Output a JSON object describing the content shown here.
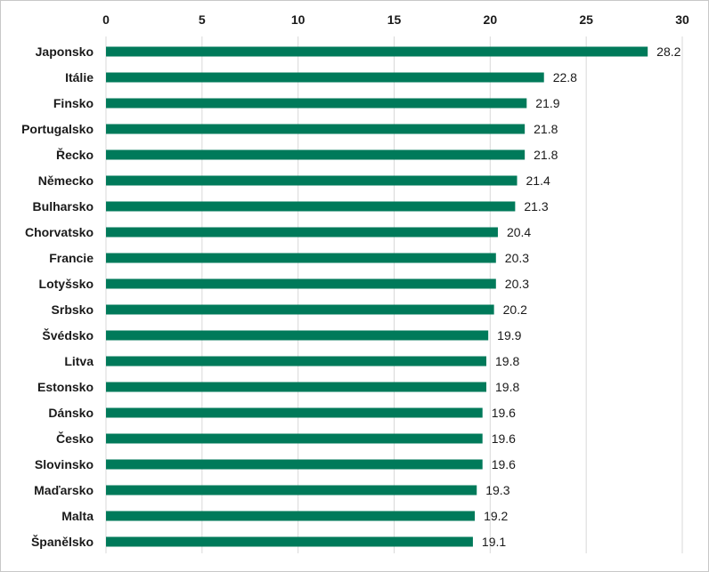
{
  "chart_data": {
    "type": "bar",
    "orientation": "horizontal",
    "categories": [
      "Japonsko",
      "Itálie",
      "Finsko",
      "Portugalsko",
      "Řecko",
      "Německo",
      "Bulharsko",
      "Chorvatsko",
      "Francie",
      "Lotyšsko",
      "Srbsko",
      "Švédsko",
      "Litva",
      "Estonsko",
      "Dánsko",
      "Česko",
      "Slovinsko",
      "Maďarsko",
      "Malta",
      "Španělsko"
    ],
    "values": [
      28.2,
      22.8,
      21.9,
      21.8,
      21.8,
      21.4,
      21.3,
      20.4,
      20.3,
      20.3,
      20.2,
      19.9,
      19.8,
      19.8,
      19.6,
      19.6,
      19.6,
      19.3,
      19.2,
      19.1
    ],
    "xlim": [
      0,
      30
    ],
    "xticks": [
      0,
      5,
      10,
      15,
      20,
      25,
      30
    ],
    "x_axis_position": "top",
    "grid": true,
    "legend": "none",
    "bar_color": "#007a5a",
    "title": "",
    "xlabel": "",
    "ylabel": ""
  }
}
